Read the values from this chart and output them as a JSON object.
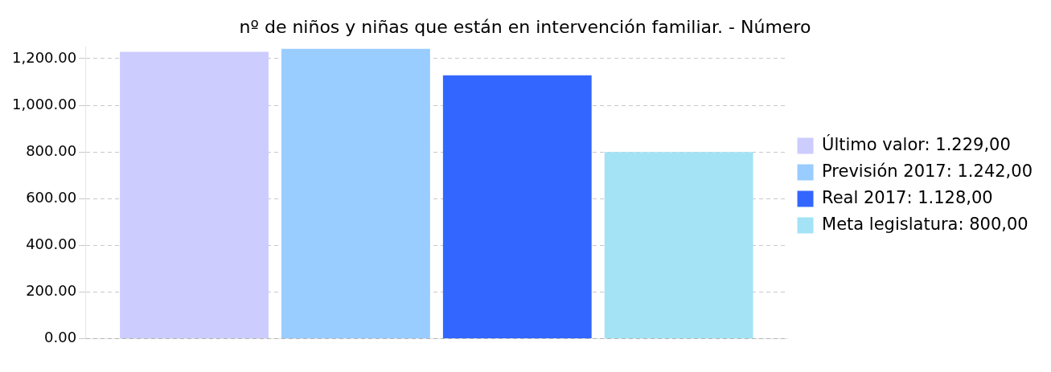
{
  "chart_data": {
    "type": "bar",
    "title": "nº de niños y niñas que están en intervención familiar. - Número",
    "categories": [
      null
    ],
    "series": [
      {
        "name": "Último valor: 1.229,00",
        "color": "#ccccff",
        "values": [
          1229
        ]
      },
      {
        "name": "Previsión 2017: 1.242,00",
        "color": "#99ccff",
        "values": [
          1242
        ]
      },
      {
        "name": "Real 2017: 1.128,00",
        "color": "#3366ff",
        "values": [
          1128
        ]
      },
      {
        "name": "Meta legislatura: 800,00",
        "color": "#a3e3f5",
        "values": [
          800
        ]
      }
    ],
    "ylim": [
      0,
      1250
    ],
    "yticks": [
      {
        "value": 0,
        "label": "0.00"
      },
      {
        "value": 200,
        "label": "200.00"
      },
      {
        "value": 400,
        "label": "400.00"
      },
      {
        "value": 600,
        "label": "600.00"
      },
      {
        "value": 800,
        "label": "800.00"
      },
      {
        "value": 1000,
        "label": "1,000.00"
      },
      {
        "value": 1200,
        "label": "1,200.00"
      }
    ],
    "grid": "y",
    "legend": "right"
  }
}
